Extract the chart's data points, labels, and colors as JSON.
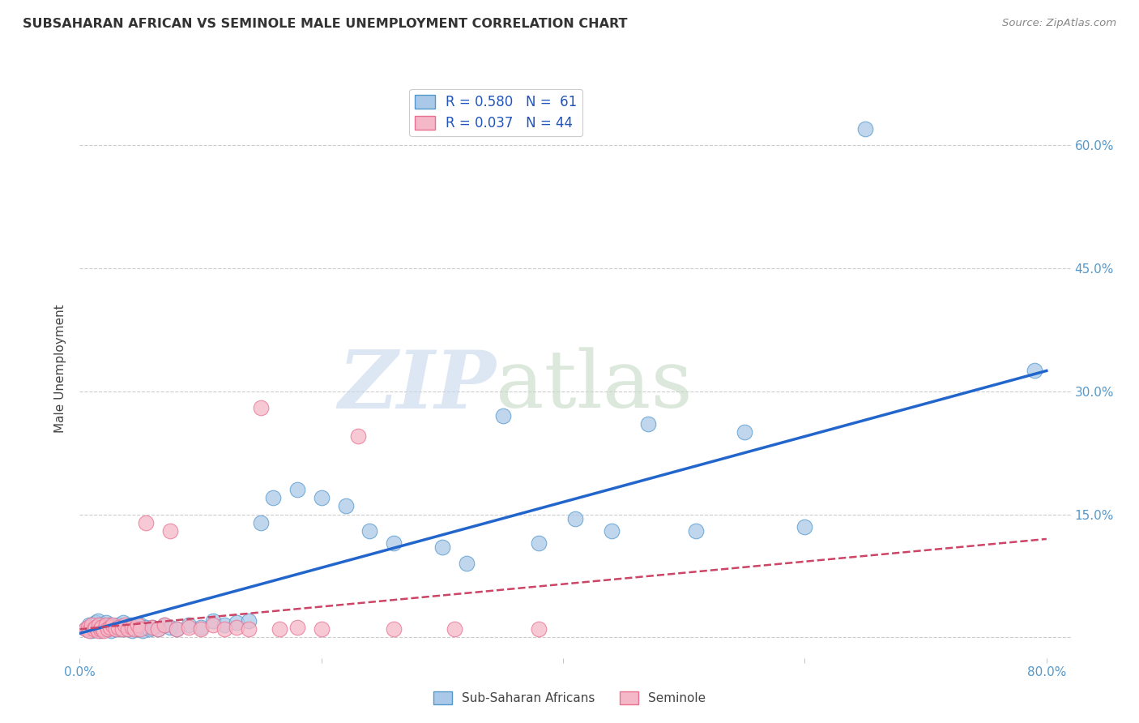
{
  "title": "SUBSAHARAN AFRICAN VS SEMINOLE MALE UNEMPLOYMENT CORRELATION CHART",
  "source": "Source: ZipAtlas.com",
  "ylabel": "Male Unemployment",
  "xlim": [
    0.0,
    0.82
  ],
  "ylim": [
    -0.025,
    0.68
  ],
  "xticks": [
    0.0,
    0.2,
    0.4,
    0.6,
    0.8
  ],
  "yticks": [
    0.0,
    0.15,
    0.3,
    0.45,
    0.6
  ],
  "background_color": "#ffffff",
  "grid_color": "#cccccc",
  "blue_color": "#aac9e8",
  "blue_edge": "#5599cc",
  "pink_color": "#f5b8c8",
  "pink_edge": "#e87090",
  "legend_blue_label": "R = 0.580   N =  61",
  "legend_pink_label": "R = 0.037   N = 44",
  "sub_saharan_x": [
    0.005,
    0.008,
    0.01,
    0.012,
    0.013,
    0.015,
    0.015,
    0.017,
    0.018,
    0.019,
    0.02,
    0.022,
    0.023,
    0.025,
    0.026,
    0.028,
    0.03,
    0.032,
    0.033,
    0.035,
    0.036,
    0.038,
    0.04,
    0.042,
    0.043,
    0.045,
    0.048,
    0.05,
    0.052,
    0.055,
    0.058,
    0.06,
    0.065,
    0.07,
    0.075,
    0.08,
    0.09,
    0.1,
    0.11,
    0.12,
    0.13,
    0.14,
    0.15,
    0.16,
    0.18,
    0.2,
    0.22,
    0.24,
    0.26,
    0.3,
    0.32,
    0.35,
    0.38,
    0.41,
    0.44,
    0.47,
    0.51,
    0.55,
    0.6,
    0.65,
    0.79
  ],
  "sub_saharan_y": [
    0.01,
    0.015,
    0.008,
    0.012,
    0.018,
    0.01,
    0.02,
    0.008,
    0.015,
    0.01,
    0.012,
    0.018,
    0.01,
    0.015,
    0.008,
    0.012,
    0.01,
    0.015,
    0.012,
    0.01,
    0.018,
    0.012,
    0.01,
    0.015,
    0.008,
    0.012,
    0.01,
    0.015,
    0.008,
    0.012,
    0.01,
    0.012,
    0.01,
    0.015,
    0.012,
    0.01,
    0.015,
    0.012,
    0.02,
    0.015,
    0.018,
    0.02,
    0.14,
    0.17,
    0.18,
    0.17,
    0.16,
    0.13,
    0.115,
    0.11,
    0.09,
    0.27,
    0.115,
    0.145,
    0.13,
    0.26,
    0.13,
    0.25,
    0.135,
    0.62,
    0.325
  ],
  "seminole_x": [
    0.005,
    0.007,
    0.008,
    0.01,
    0.012,
    0.013,
    0.015,
    0.016,
    0.017,
    0.018,
    0.02,
    0.022,
    0.023,
    0.025,
    0.027,
    0.03,
    0.032,
    0.035,
    0.037,
    0.04,
    0.043,
    0.045,
    0.048,
    0.05,
    0.055,
    0.06,
    0.065,
    0.07,
    0.075,
    0.08,
    0.09,
    0.1,
    0.11,
    0.12,
    0.13,
    0.14,
    0.15,
    0.165,
    0.18,
    0.2,
    0.23,
    0.26,
    0.31,
    0.38
  ],
  "seminole_y": [
    0.01,
    0.012,
    0.008,
    0.015,
    0.01,
    0.012,
    0.008,
    0.015,
    0.01,
    0.012,
    0.008,
    0.015,
    0.01,
    0.012,
    0.015,
    0.01,
    0.012,
    0.01,
    0.015,
    0.01,
    0.012,
    0.01,
    0.015,
    0.01,
    0.14,
    0.012,
    0.01,
    0.015,
    0.13,
    0.01,
    0.012,
    0.01,
    0.015,
    0.01,
    0.012,
    0.01,
    0.28,
    0.01,
    0.012,
    0.01,
    0.245,
    0.01,
    0.01,
    0.01
  ],
  "blue_trend_x0": 0.0,
  "blue_trend_y0": 0.005,
  "blue_trend_x1": 0.8,
  "blue_trend_y1": 0.325,
  "pink_trend_x0": 0.0,
  "pink_trend_y0": 0.01,
  "pink_trend_x1": 0.8,
  "pink_trend_y1": 0.12
}
